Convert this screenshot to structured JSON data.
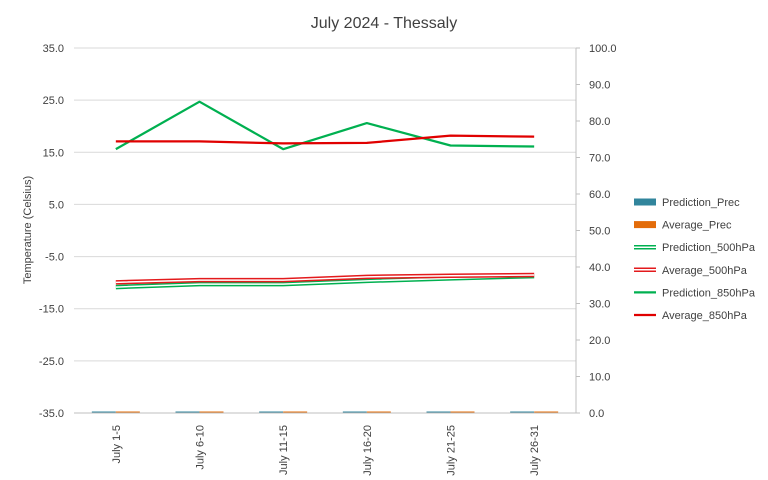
{
  "chart_data": {
    "type": "line",
    "title": "July 2024 - Thessaly",
    "ylabel": "Temperature (Celsius)",
    "y2label": "",
    "xlabel": "",
    "categories": [
      "July 1-5",
      "July 6-10",
      "July 11-15",
      "July 16-20",
      "July 21-25",
      "July 26-31"
    ],
    "ylim": [
      -35,
      35
    ],
    "y_ticks": [
      "35.0",
      "25.0",
      "15.0",
      "5.0",
      "-5.0",
      "-15.0",
      "-25.0",
      "-35.0"
    ],
    "y2lim": [
      0,
      100
    ],
    "y2_ticks": [
      "100.0",
      "90.0",
      "80.0",
      "70.0",
      "60.0",
      "50.0",
      "40.0",
      "30.0",
      "20.0",
      "10.0",
      "0.0"
    ],
    "grid": true,
    "legend_position": "right",
    "series": [
      {
        "name": "Prediction_Prec",
        "kind": "bar",
        "axis": "secondary",
        "color": "#31859c",
        "values": [
          0,
          0,
          0,
          0,
          0,
          0
        ]
      },
      {
        "name": "Average_Prec",
        "kind": "bar",
        "axis": "secondary",
        "color": "#e36c09",
        "values": [
          0,
          0,
          0,
          0,
          0,
          0
        ]
      },
      {
        "name": "Prediction_500hPa",
        "kind": "line",
        "style": "double",
        "axis": "secondary",
        "color": "#00b050",
        "values": [
          34.5,
          35.3,
          35.3,
          36.2,
          36.9,
          37.5
        ]
      },
      {
        "name": "Average_500hPa",
        "kind": "line",
        "style": "double",
        "axis": "secondary",
        "color": "#e31a1c",
        "values": [
          35.8,
          36.4,
          36.4,
          37.3,
          37.6,
          37.8
        ]
      },
      {
        "name": "Prediction_850hPa",
        "kind": "line",
        "style": "solid",
        "axis": "primary",
        "color": "#00b050",
        "values": [
          15.6,
          24.7,
          15.6,
          20.6,
          16.3,
          16.1
        ]
      },
      {
        "name": "Average_850hPa",
        "kind": "line",
        "style": "solid",
        "axis": "primary",
        "color": "#e00000",
        "values": [
          17.1,
          17.1,
          16.7,
          16.8,
          18.2,
          18.0
        ]
      }
    ]
  }
}
